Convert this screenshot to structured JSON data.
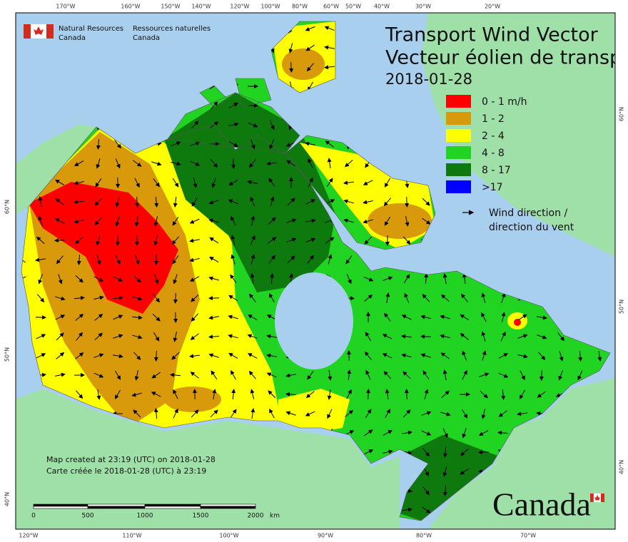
{
  "header": {
    "org_en": [
      "Natural Resources",
      "Canada"
    ],
    "org_fr": [
      "Ressources naturelles",
      "Canada"
    ]
  },
  "title": [
    "Transport Wind Vector",
    "Vecteur éolien de transp"
  ],
  "date": "2018-01-28",
  "legend": [
    {
      "label": "0 - 1 m/h",
      "color": "#ff0000"
    },
    {
      "label": "1 - 2",
      "color": "#d89a0a"
    },
    {
      "label": "2 - 4",
      "color": "#ffff00"
    },
    {
      "label": "4 - 8",
      "color": "#22d422"
    },
    {
      "label": "8 - 17",
      "color": "#0e7a0e"
    },
    {
      "label": ">17",
      "color": "#0000ff"
    }
  ],
  "wind_legend": [
    "Wind direction /",
    "direction du vent"
  ],
  "lon_labels_top": [
    "170°W",
    "160°W",
    "150°W",
    "140°W",
    "120°W",
    "100°W",
    "80°W",
    "60°W",
    "50°W",
    "40°W",
    "30°W",
    "20°W"
  ],
  "lon_labels_bottom": [
    "120°W",
    "110°W",
    "100°W",
    "90°W",
    "80°W",
    "70°W"
  ],
  "lat_labels_left": [
    "60°N",
    "50°N",
    "40°N"
  ],
  "lat_labels_right": [
    "60°N",
    "50°N",
    "40°N"
  ],
  "note": [
    "Map created at 23:19 (UTC) on 2018-01-28",
    "Carte créée le 2018-01-28 (UTC) à 23:19"
  ],
  "scale": {
    "ticks": [
      "0",
      "500",
      "1000",
      "1500",
      "2000"
    ],
    "unit": "km"
  },
  "wordmark": "Canada"
}
